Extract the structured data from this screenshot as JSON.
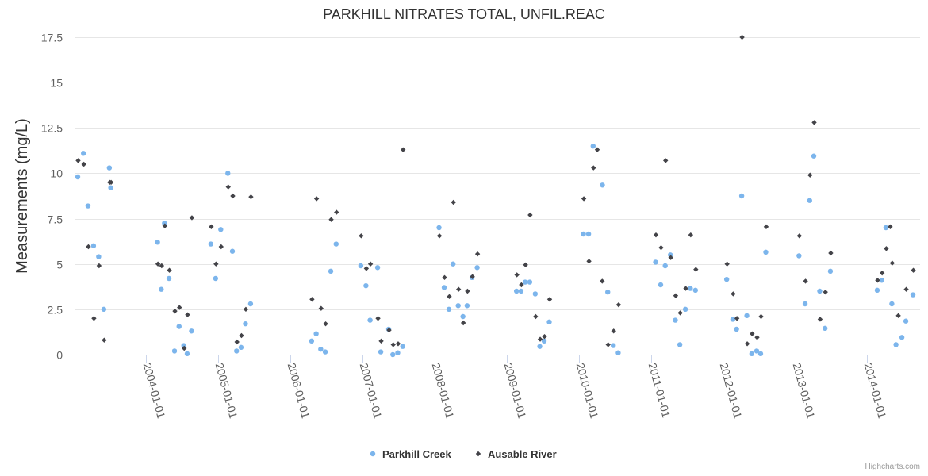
{
  "chart_data": {
    "type": "scatter",
    "title": "PARKHILL NITRATES TOTAL, UNFIL.REAC",
    "ylabel": "Measurements (mg/L)",
    "xlabel": "",
    "ylim": [
      0,
      17.5
    ],
    "y_ticks": [
      0,
      2.5,
      5,
      7.5,
      10,
      12.5,
      15,
      17.5
    ],
    "y_tick_labels": [
      "0",
      "2.5",
      "5",
      "7.5",
      "10",
      "12.5",
      "15",
      "17.5"
    ],
    "xlim": [
      "2003-01-10",
      "2014-09-25"
    ],
    "x_ticks": [
      "2004-01-01",
      "2005-01-01",
      "2006-01-01",
      "2007-01-01",
      "2008-01-01",
      "2009-01-01",
      "2010-01-01",
      "2011-01-01",
      "2012-01-01",
      "2013-01-01",
      "2014-01-01"
    ],
    "grid": true,
    "legend_position": "bottom-center",
    "credit": "Highcharts.com",
    "series": [
      {
        "name": "Parkhill Creek",
        "color": "#7cb5ec",
        "marker": "circle",
        "points": [
          [
            "2003-01-22",
            9.8
          ],
          [
            "2003-02-20",
            11.1
          ],
          [
            "2003-03-15",
            8.2
          ],
          [
            "2003-04-12",
            6.0
          ],
          [
            "2003-05-08",
            5.4
          ],
          [
            "2003-06-03",
            2.5
          ],
          [
            "2003-07-01",
            10.3
          ],
          [
            "2003-07-08",
            9.2
          ],
          [
            "2004-03-01",
            6.2
          ],
          [
            "2004-03-20",
            3.6
          ],
          [
            "2004-04-05",
            7.25
          ],
          [
            "2004-04-28",
            4.2
          ],
          [
            "2004-05-26",
            0.2
          ],
          [
            "2004-06-18",
            1.55
          ],
          [
            "2004-07-12",
            0.5
          ],
          [
            "2004-07-29",
            0.05
          ],
          [
            "2004-08-20",
            1.3
          ],
          [
            "2004-11-26",
            6.1
          ],
          [
            "2004-12-20",
            4.2
          ],
          [
            "2005-01-15",
            6.9
          ],
          [
            "2005-02-20",
            10.0
          ],
          [
            "2005-03-15",
            5.7
          ],
          [
            "2005-04-05",
            0.2
          ],
          [
            "2005-04-28",
            0.4
          ],
          [
            "2005-05-20",
            1.7
          ],
          [
            "2005-06-15",
            2.8
          ],
          [
            "2006-04-20",
            0.75
          ],
          [
            "2006-05-13",
            1.15
          ],
          [
            "2006-06-05",
            0.3
          ],
          [
            "2006-06-28",
            0.15
          ],
          [
            "2006-07-26",
            4.6
          ],
          [
            "2006-08-22",
            6.1
          ],
          [
            "2006-12-25",
            4.9
          ],
          [
            "2007-01-20",
            3.8
          ],
          [
            "2007-02-10",
            1.9
          ],
          [
            "2007-03-20",
            4.8
          ],
          [
            "2007-04-05",
            0.15
          ],
          [
            "2007-05-15",
            1.4
          ],
          [
            "2007-06-05",
            0.0
          ],
          [
            "2007-06-30",
            0.1
          ],
          [
            "2007-07-25",
            0.45
          ],
          [
            "2008-01-25",
            7.0
          ],
          [
            "2008-02-20",
            3.7
          ],
          [
            "2008-03-15",
            2.5
          ],
          [
            "2008-04-05",
            5.0
          ],
          [
            "2008-05-01",
            2.7
          ],
          [
            "2008-05-25",
            2.1
          ],
          [
            "2008-06-15",
            2.7
          ],
          [
            "2008-07-10",
            4.25
          ],
          [
            "2008-08-05",
            4.8
          ],
          [
            "2009-02-20",
            3.5
          ],
          [
            "2009-03-15",
            3.5
          ],
          [
            "2009-04-05",
            4.0
          ],
          [
            "2009-04-28",
            4.0
          ],
          [
            "2009-05-26",
            3.35
          ],
          [
            "2009-06-18",
            0.45
          ],
          [
            "2009-07-10",
            0.75
          ],
          [
            "2009-08-05",
            1.8
          ],
          [
            "2010-01-25",
            6.65
          ],
          [
            "2010-02-20",
            6.65
          ],
          [
            "2010-03-15",
            11.5
          ],
          [
            "2010-05-01",
            9.35
          ],
          [
            "2010-05-28",
            3.45
          ],
          [
            "2010-06-25",
            0.5
          ],
          [
            "2010-07-20",
            0.1
          ],
          [
            "2011-01-25",
            5.1
          ],
          [
            "2011-02-20",
            3.85
          ],
          [
            "2011-03-15",
            4.9
          ],
          [
            "2011-04-10",
            5.5
          ],
          [
            "2011-05-05",
            1.9
          ],
          [
            "2011-05-28",
            0.55
          ],
          [
            "2011-06-25",
            2.5
          ],
          [
            "2011-07-20",
            3.65
          ],
          [
            "2011-08-15",
            3.55
          ],
          [
            "2012-01-20",
            4.15
          ],
          [
            "2012-02-20",
            1.95
          ],
          [
            "2012-03-10",
            1.4
          ],
          [
            "2012-04-05",
            8.75
          ],
          [
            "2012-05-01",
            2.15
          ],
          [
            "2012-05-26",
            0.05
          ],
          [
            "2012-06-20",
            0.2
          ],
          [
            "2012-07-10",
            0.05
          ],
          [
            "2012-08-05",
            5.65
          ],
          [
            "2013-01-20",
            5.45
          ],
          [
            "2013-02-20",
            2.8
          ],
          [
            "2013-03-15",
            8.5
          ],
          [
            "2013-04-05",
            10.95
          ],
          [
            "2013-05-05",
            3.5
          ],
          [
            "2013-06-01",
            1.45
          ],
          [
            "2013-06-28",
            4.6
          ],
          [
            "2014-02-20",
            3.55
          ],
          [
            "2014-03-15",
            4.1
          ],
          [
            "2014-04-05",
            7.0
          ],
          [
            "2014-05-05",
            2.8
          ],
          [
            "2014-05-26",
            0.55
          ],
          [
            "2014-06-25",
            0.95
          ],
          [
            "2014-07-15",
            1.85
          ],
          [
            "2014-08-20",
            3.3
          ]
        ]
      },
      {
        "name": "Ausable River",
        "color": "#434348",
        "marker": "diamond",
        "points": [
          [
            "2003-01-24",
            10.7
          ],
          [
            "2003-02-22",
            10.5
          ],
          [
            "2003-03-17",
            5.95
          ],
          [
            "2003-04-14",
            2.0
          ],
          [
            "2003-05-10",
            4.9
          ],
          [
            "2003-06-05",
            0.8
          ],
          [
            "2003-07-03",
            9.5
          ],
          [
            "2003-07-10",
            9.5
          ],
          [
            "2004-03-03",
            5.0
          ],
          [
            "2004-03-22",
            4.9
          ],
          [
            "2004-04-07",
            7.1
          ],
          [
            "2004-04-30",
            4.65
          ],
          [
            "2004-05-28",
            2.4
          ],
          [
            "2004-06-20",
            2.6
          ],
          [
            "2004-07-14",
            0.35
          ],
          [
            "2004-07-31",
            2.2
          ],
          [
            "2004-08-22",
            7.55
          ],
          [
            "2004-11-28",
            7.05
          ],
          [
            "2004-12-22",
            5.0
          ],
          [
            "2005-01-17",
            5.95
          ],
          [
            "2005-02-22",
            9.25
          ],
          [
            "2005-03-17",
            8.75
          ],
          [
            "2005-04-07",
            0.7
          ],
          [
            "2005-04-30",
            1.05
          ],
          [
            "2005-05-22",
            2.5
          ],
          [
            "2005-06-17",
            8.7
          ],
          [
            "2006-04-22",
            3.05
          ],
          [
            "2006-05-15",
            8.6
          ],
          [
            "2006-06-07",
            2.55
          ],
          [
            "2006-06-30",
            1.7
          ],
          [
            "2006-07-28",
            7.45
          ],
          [
            "2006-08-24",
            7.85
          ],
          [
            "2006-12-27",
            6.55
          ],
          [
            "2007-01-22",
            4.75
          ],
          [
            "2007-02-12",
            5.0
          ],
          [
            "2007-03-22",
            2.0
          ],
          [
            "2007-04-07",
            0.75
          ],
          [
            "2007-05-17",
            1.35
          ],
          [
            "2007-06-07",
            0.55
          ],
          [
            "2007-07-02",
            0.6
          ],
          [
            "2007-07-27",
            11.3
          ],
          [
            "2008-01-27",
            6.55
          ],
          [
            "2008-02-22",
            4.25
          ],
          [
            "2008-03-17",
            3.2
          ],
          [
            "2008-04-07",
            8.4
          ],
          [
            "2008-05-03",
            3.6
          ],
          [
            "2008-05-27",
            1.75
          ],
          [
            "2008-06-17",
            3.5
          ],
          [
            "2008-07-12",
            4.3
          ],
          [
            "2008-08-07",
            5.55
          ],
          [
            "2009-02-22",
            4.4
          ],
          [
            "2009-03-17",
            3.85
          ],
          [
            "2009-04-07",
            4.95
          ],
          [
            "2009-04-30",
            7.7
          ],
          [
            "2009-05-28",
            2.1
          ],
          [
            "2009-06-20",
            0.85
          ],
          [
            "2009-07-12",
            1.0
          ],
          [
            "2009-08-07",
            3.05
          ],
          [
            "2010-01-27",
            8.6
          ],
          [
            "2010-02-22",
            5.15
          ],
          [
            "2010-03-17",
            10.3
          ],
          [
            "2010-04-05",
            11.3
          ],
          [
            "2010-04-30",
            4.05
          ],
          [
            "2010-05-30",
            0.55
          ],
          [
            "2010-06-27",
            1.3
          ],
          [
            "2010-07-22",
            2.75
          ],
          [
            "2011-01-27",
            6.6
          ],
          [
            "2011-02-22",
            5.9
          ],
          [
            "2011-03-17",
            10.7
          ],
          [
            "2011-04-12",
            5.35
          ],
          [
            "2011-05-07",
            3.25
          ],
          [
            "2011-05-30",
            2.3
          ],
          [
            "2011-06-27",
            3.65
          ],
          [
            "2011-07-22",
            6.6
          ],
          [
            "2011-08-17",
            4.7
          ],
          [
            "2012-01-22",
            5.0
          ],
          [
            "2012-02-22",
            3.35
          ],
          [
            "2012-03-12",
            2.0
          ],
          [
            "2012-04-07",
            17.5
          ],
          [
            "2012-05-03",
            0.6
          ],
          [
            "2012-05-28",
            1.15
          ],
          [
            "2012-06-22",
            0.95
          ],
          [
            "2012-07-12",
            2.1
          ],
          [
            "2012-08-07",
            7.05
          ],
          [
            "2013-01-22",
            6.55
          ],
          [
            "2013-02-22",
            4.05
          ],
          [
            "2013-03-17",
            9.9
          ],
          [
            "2013-04-07",
            12.8
          ],
          [
            "2013-05-07",
            1.95
          ],
          [
            "2013-06-03",
            3.45
          ],
          [
            "2013-06-30",
            5.6
          ],
          [
            "2014-02-22",
            4.1
          ],
          [
            "2014-03-17",
            4.5
          ],
          [
            "2014-04-07",
            5.85
          ],
          [
            "2014-04-27",
            7.05
          ],
          [
            "2014-05-07",
            5.05
          ],
          [
            "2014-06-07",
            2.15
          ],
          [
            "2014-07-17",
            3.6
          ],
          [
            "2014-08-22",
            4.65
          ]
        ]
      }
    ]
  }
}
